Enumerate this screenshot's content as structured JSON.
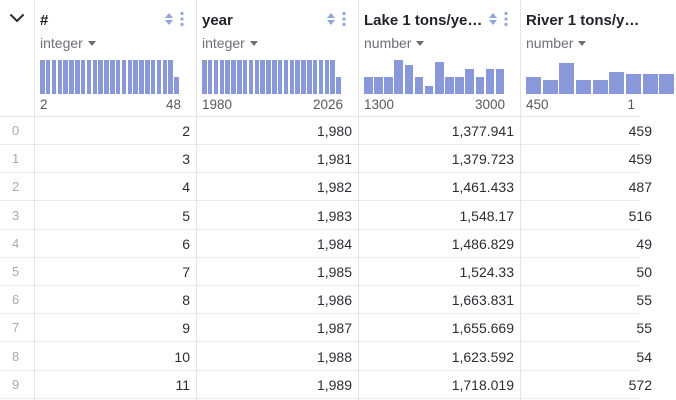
{
  "columns": [
    {
      "name": "#",
      "type": "integer",
      "range_min": "2",
      "range_max": "48",
      "histogram": [
        1,
        1,
        1,
        1,
        1,
        1,
        1,
        1,
        1,
        1,
        1,
        1,
        1,
        1,
        1,
        1,
        1,
        1,
        1,
        1,
        1,
        1,
        1,
        0.5
      ]
    },
    {
      "name": "year",
      "type": "integer",
      "range_min": "1980",
      "range_max": "2026",
      "histogram": [
        1,
        1,
        1,
        1,
        1,
        1,
        1,
        1,
        1,
        1,
        1,
        1,
        1,
        1,
        1,
        1,
        1,
        1,
        1,
        1,
        1,
        1,
        1,
        0.5
      ]
    },
    {
      "name": "Lake 1 tons/ye…",
      "type": "number",
      "range_min": "1300",
      "range_max": "3000",
      "histogram": [
        0.5,
        0.5,
        0.5,
        1,
        0.85,
        0.5,
        0.25,
        0.95,
        0.5,
        0.5,
        0.75,
        0.5,
        0.75,
        0.75
      ]
    },
    {
      "name": "River 1 tons/y…",
      "type": "number",
      "range_min": "450",
      "range_max": "1",
      "histogram": [
        0.5,
        0.4,
        0.9,
        0.4,
        0.4,
        0.65,
        0.6,
        0.6,
        0.6
      ]
    }
  ],
  "rows": [
    {
      "index": "0",
      "cells": [
        "2",
        "1,980",
        "1,377.941",
        "459"
      ]
    },
    {
      "index": "1",
      "cells": [
        "3",
        "1,981",
        "1,379.723",
        "459"
      ]
    },
    {
      "index": "2",
      "cells": [
        "4",
        "1,982",
        "1,461.433",
        "487"
      ]
    },
    {
      "index": "3",
      "cells": [
        "5",
        "1,983",
        "1,548.17",
        "516"
      ]
    },
    {
      "index": "4",
      "cells": [
        "6",
        "1,984",
        "1,486.829",
        "49"
      ]
    },
    {
      "index": "5",
      "cells": [
        "7",
        "1,985",
        "1,524.33",
        "50"
      ]
    },
    {
      "index": "6",
      "cells": [
        "8",
        "1,986",
        "1,663.831",
        "55"
      ]
    },
    {
      "index": "7",
      "cells": [
        "9",
        "1,987",
        "1,655.669",
        "55"
      ]
    },
    {
      "index": "8",
      "cells": [
        "10",
        "1,988",
        "1,623.592",
        "54"
      ]
    },
    {
      "index": "9",
      "cells": [
        "11",
        "1,989",
        "1,718.019",
        "572"
      ]
    }
  ],
  "colors": {
    "histogram": "#8898d8",
    "sort_icon": "#8ea6dc",
    "grid_line": "#e3e5e8"
  },
  "icons": {
    "collapse": "chevron-down-icon",
    "sort": "sort-icon",
    "menu": "kebab-menu-icon"
  }
}
